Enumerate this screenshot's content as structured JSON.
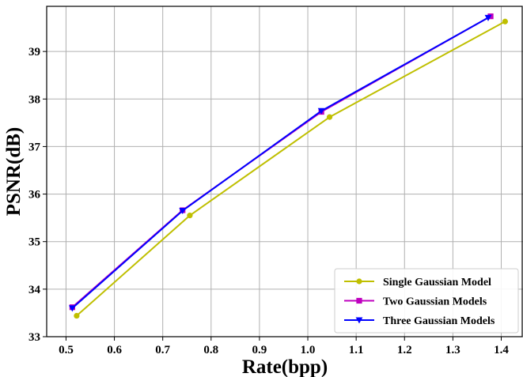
{
  "chart_data": {
    "type": "line",
    "title": "",
    "xlabel": "Rate(bpp)",
    "ylabel": "PSNR(dB)",
    "xlim": [
      0.46,
      1.445
    ],
    "ylim": [
      33.0,
      39.95
    ],
    "xticks": [
      0.5,
      0.6,
      0.7,
      0.8,
      0.9,
      1.0,
      1.1,
      1.2,
      1.3,
      1.4
    ],
    "xtick_labels": [
      "0.5",
      "0.6",
      "0.7",
      "0.8",
      "0.9",
      "1.0",
      "1.1",
      "1.2",
      "1.3",
      "1.4"
    ],
    "yticks": [
      33,
      34,
      35,
      36,
      37,
      38,
      39
    ],
    "ytick_labels": [
      "33",
      "34",
      "35",
      "36",
      "37",
      "38",
      "39"
    ],
    "grid": true,
    "legend_position": "bottom-right",
    "series": [
      {
        "name": "Single Gaussian Model",
        "color": "#bfbf00",
        "marker": "circle",
        "x": [
          0.522,
          0.756,
          1.045,
          1.408
        ],
        "y": [
          33.44,
          35.55,
          37.62,
          39.63
        ]
      },
      {
        "name": "Two Gaussian Models",
        "color": "#bf00bf",
        "marker": "square",
        "x": [
          0.513,
          0.741,
          1.028,
          1.378
        ],
        "y": [
          33.62,
          35.66,
          37.73,
          39.74
        ]
      },
      {
        "name": "Three Gaussian Models",
        "color": "#0000ff",
        "marker": "triangle-down",
        "x": [
          0.513,
          0.741,
          1.028,
          1.373
        ],
        "y": [
          33.6,
          35.65,
          37.75,
          39.71
        ]
      }
    ]
  }
}
